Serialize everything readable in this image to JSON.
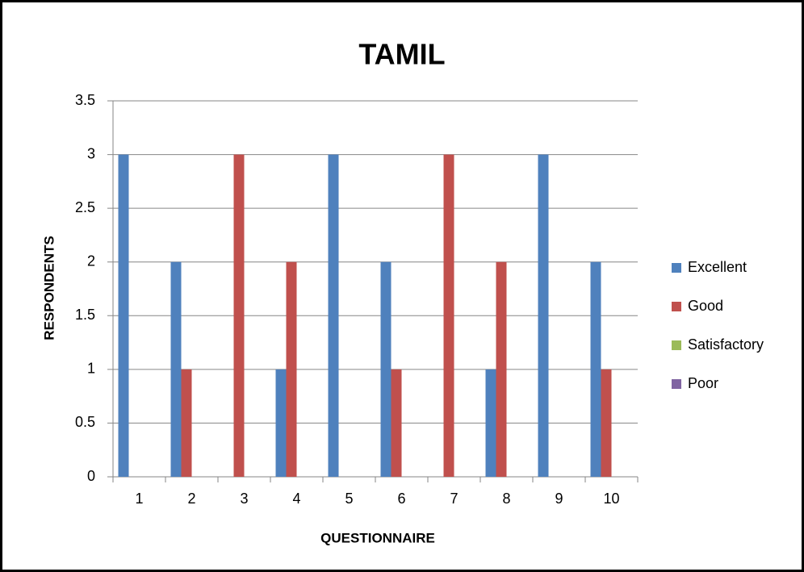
{
  "chart_data": {
    "type": "bar",
    "title": "TAMIL",
    "x_label": "QUESTIONNAIRE",
    "y_label": "RESPONDENTS",
    "categories": [
      "1",
      "2",
      "3",
      "4",
      "5",
      "6",
      "7",
      "8",
      "9",
      "10"
    ],
    "series": [
      {
        "name": "Excellent",
        "color": "#4f81bd",
        "values": [
          3,
          2,
          0,
          1,
          3,
          2,
          0,
          1,
          3,
          2
        ]
      },
      {
        "name": "Good",
        "color": "#c0504d",
        "values": [
          0,
          1,
          3,
          2,
          0,
          1,
          3,
          2,
          0,
          1
        ]
      },
      {
        "name": "Satisfactory",
        "color": "#9bbb59",
        "values": [
          0,
          0,
          0,
          0,
          0,
          0,
          0,
          0,
          0,
          0
        ]
      },
      {
        "name": "Poor",
        "color": "#8064a2",
        "values": [
          0,
          0,
          0,
          0,
          0,
          0,
          0,
          0,
          0,
          0
        ]
      }
    ],
    "ylim": [
      0,
      3.5
    ],
    "yticks": [
      0,
      0.5,
      1,
      1.5,
      2,
      2.5,
      3,
      3.5
    ],
    "grid": true,
    "legend": "right"
  }
}
